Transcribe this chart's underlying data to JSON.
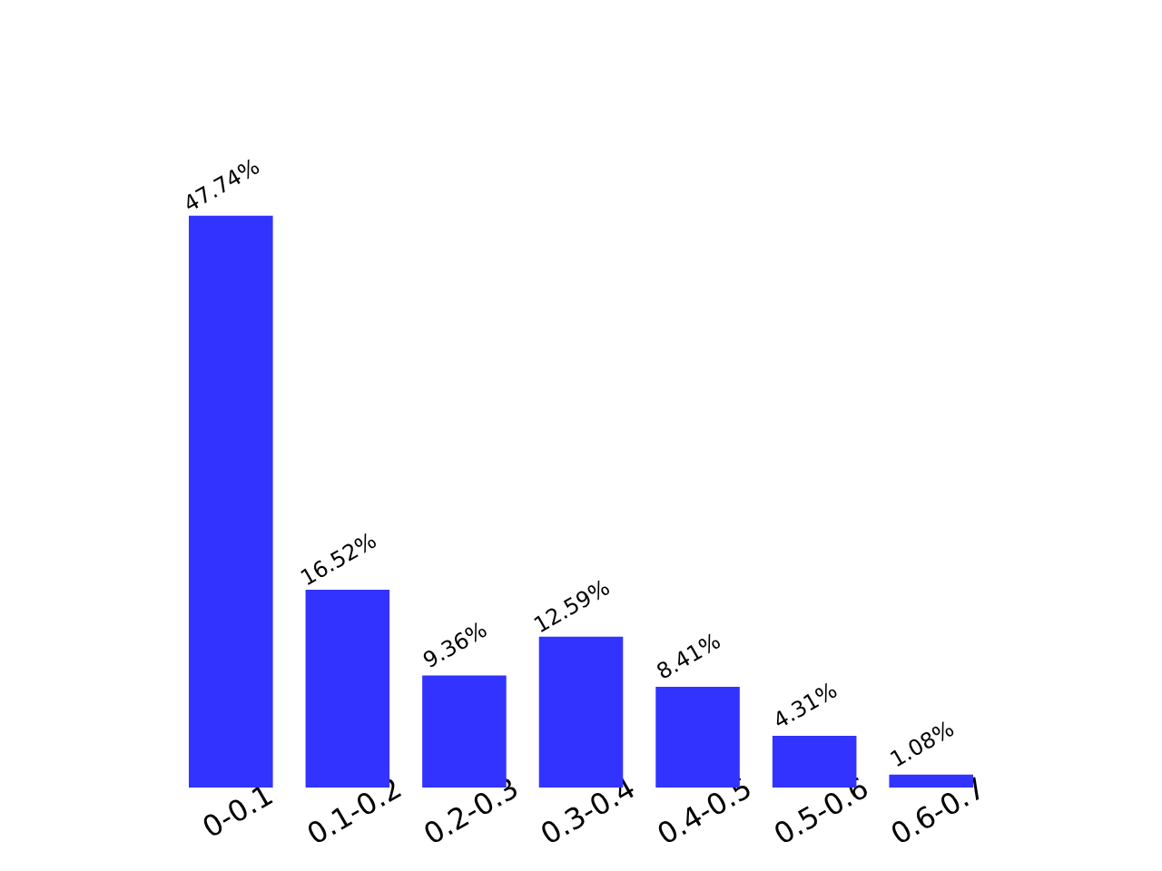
{
  "chart_data": {
    "type": "bar",
    "categories": [
      "0-0.1",
      "0.1-0.2",
      "0.2-0.3",
      "0.3-0.4",
      "0.4-0.5",
      "0.5-0.6",
      "0.6-0.7"
    ],
    "values": [
      47.74,
      16.52,
      9.36,
      12.59,
      8.41,
      4.31,
      1.08
    ],
    "value_labels": [
      "47.74%",
      "16.52%",
      "9.36%",
      "12.59%",
      "8.41%",
      "4.31%",
      "1.08%"
    ],
    "color": "#3333ff",
    "grid": false,
    "tick_labels": "x"
  }
}
